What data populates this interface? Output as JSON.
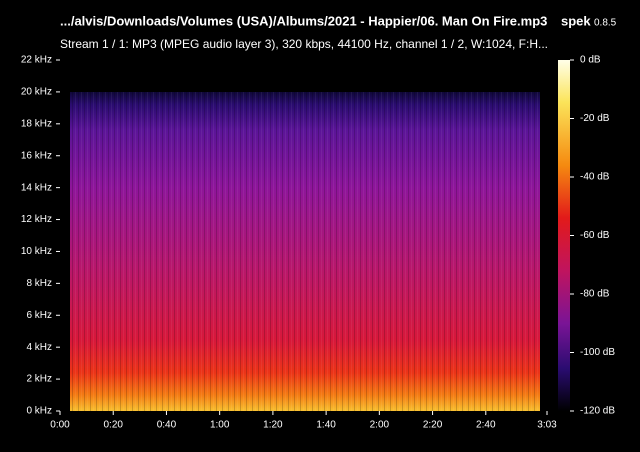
{
  "chart_data": {
    "type": "spectrogram",
    "title": ".../alvis/Downloads/Volumes (USA)/Albums/2021 - Happier/06. Man On Fire.mp3",
    "app_name": "spek",
    "app_version": "0.8.5",
    "subtitle": "Stream 1 / 1: MP3 (MPEG audio layer 3), 320 kbps, 44100 Hz, channel 1 / 2, W:1024, F:H...",
    "xlim": [
      0,
      183
    ],
    "xticks": [
      {
        "value": 0,
        "label": "0:00"
      },
      {
        "value": 20,
        "label": "0:20"
      },
      {
        "value": 40,
        "label": "0:40"
      },
      {
        "value": 60,
        "label": "1:00"
      },
      {
        "value": 80,
        "label": "1:20"
      },
      {
        "value": 100,
        "label": "1:40"
      },
      {
        "value": 120,
        "label": "2:00"
      },
      {
        "value": 140,
        "label": "2:20"
      },
      {
        "value": 160,
        "label": "2:40"
      },
      {
        "value": 183,
        "label": "3:03"
      }
    ],
    "ylim": [
      0,
      22
    ],
    "yticks": [
      {
        "value": 0,
        "label": "0 kHz"
      },
      {
        "value": 2,
        "label": "2 kHz"
      },
      {
        "value": 4,
        "label": "4 kHz"
      },
      {
        "value": 6,
        "label": "6 kHz"
      },
      {
        "value": 8,
        "label": "8 kHz"
      },
      {
        "value": 10,
        "label": "10 kHz"
      },
      {
        "value": 12,
        "label": "12 kHz"
      },
      {
        "value": 14,
        "label": "14 kHz"
      },
      {
        "value": 16,
        "label": "16 kHz"
      },
      {
        "value": 18,
        "label": "18 kHz"
      },
      {
        "value": 20,
        "label": "20 kHz"
      },
      {
        "value": 22,
        "label": "22 kHz"
      }
    ],
    "colorbar": {
      "lim": [
        -120,
        0
      ],
      "ticks": [
        {
          "value": 0,
          "label": "0 dB"
        },
        {
          "value": -20,
          "label": "-20 dB"
        },
        {
          "value": -40,
          "label": "-40 dB"
        },
        {
          "value": -60,
          "label": "-60 dB"
        },
        {
          "value": -80,
          "label": "-80 dB"
        },
        {
          "value": -100,
          "label": "-100 dB"
        },
        {
          "value": -120,
          "label": "-120 dB"
        }
      ]
    }
  }
}
